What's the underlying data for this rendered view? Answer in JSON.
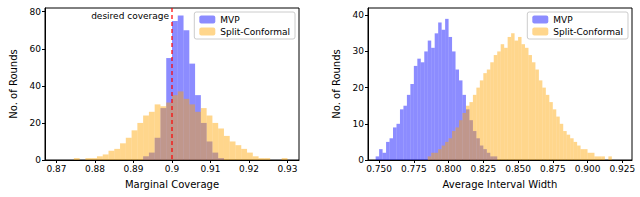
{
  "chart_data": [
    {
      "type": "histogram",
      "xlabel": "Marginal Coverage",
      "ylabel": "No. of Rounds",
      "bins": [
        0.87,
        0.8715,
        0.873,
        0.8745,
        0.876,
        0.8775,
        0.879,
        0.8805,
        0.882,
        0.8835,
        0.885,
        0.8865,
        0.888,
        0.8895,
        0.891,
        0.8925,
        0.894,
        0.8955,
        0.897,
        0.8985,
        0.9,
        0.9015,
        0.903,
        0.9045,
        0.906,
        0.9075,
        0.909,
        0.9105,
        0.912,
        0.9135,
        0.915,
        0.9165,
        0.918,
        0.9195,
        0.921,
        0.9225,
        0.924,
        0.9255,
        0.927,
        0.9285,
        0.93
      ],
      "series": [
        {
          "name": "MVP",
          "color": "#0000ff",
          "values": [
            0,
            0,
            0,
            0,
            0,
            0,
            0,
            0,
            0,
            0,
            0,
            0,
            0,
            0,
            0,
            2,
            4,
            12,
            28,
            55,
            75,
            78,
            70,
            52,
            35,
            20,
            10,
            4,
            1,
            0,
            0,
            0,
            0,
            0,
            0,
            0,
            0,
            0,
            0,
            0
          ]
        },
        {
          "name": "Split-Conformal",
          "color": "#ffa500",
          "values": [
            0,
            0,
            0,
            1,
            0,
            1,
            1,
            2,
            3,
            5,
            6,
            9,
            12,
            16,
            20,
            24,
            26,
            30,
            29,
            31,
            35,
            37,
            33,
            30,
            26,
            28,
            24,
            20,
            17,
            13,
            10,
            8,
            6,
            4,
            2,
            1,
            1,
            0,
            0,
            1
          ]
        }
      ],
      "vline": {
        "x": 0.9,
        "label": "desired coverage",
        "color": "red",
        "line_style": "dashed"
      },
      "xlim": [
        0.867,
        0.933
      ],
      "xticks": [
        0.87,
        0.88,
        0.89,
        0.9,
        0.91,
        0.92,
        0.93
      ],
      "ylim": [
        0,
        82
      ],
      "yticks": [
        0,
        20,
        40,
        60,
        80
      ],
      "legend": "upper right",
      "grid": false
    },
    {
      "type": "histogram",
      "xlabel": "Average Interval Width",
      "ylabel": "No. of Rounds",
      "bins": [
        0.745,
        0.7475,
        0.75,
        0.7525,
        0.755,
        0.7575,
        0.76,
        0.7625,
        0.765,
        0.7675,
        0.77,
        0.7725,
        0.775,
        0.7775,
        0.78,
        0.7825,
        0.785,
        0.7875,
        0.79,
        0.7925,
        0.795,
        0.7975,
        0.8,
        0.8025,
        0.805,
        0.8075,
        0.81,
        0.8125,
        0.815,
        0.8175,
        0.82,
        0.8225,
        0.825,
        0.8275,
        0.83,
        0.8325,
        0.835,
        0.8375,
        0.84,
        0.8425,
        0.845,
        0.8475,
        0.85,
        0.8525,
        0.855,
        0.8575,
        0.86,
        0.8625,
        0.865,
        0.8675,
        0.87,
        0.8725,
        0.875,
        0.8775,
        0.88,
        0.8825,
        0.885,
        0.8875,
        0.89,
        0.8925,
        0.895,
        0.8975,
        0.9,
        0.9025,
        0.905,
        0.9075,
        0.91,
        0.9125,
        0.915,
        0.9175,
        0.92,
        0.9225,
        0.925
      ],
      "series": [
        {
          "name": "MVP",
          "color": "#0000ff",
          "values": [
            0,
            1,
            3,
            2,
            5,
            6,
            9,
            10,
            14,
            15,
            18,
            21,
            26,
            28,
            27,
            30,
            33,
            31,
            35,
            38,
            36,
            39,
            34,
            30,
            25,
            22,
            18,
            14,
            11,
            8,
            6,
            4,
            3,
            2,
            1,
            1,
            0,
            0,
            0,
            0,
            0,
            0,
            0,
            0,
            0,
            0,
            0,
            0,
            0,
            0,
            0,
            0,
            0,
            0,
            0,
            0,
            0,
            0,
            0,
            0,
            0,
            0,
            0,
            0,
            0,
            0,
            0,
            0,
            0,
            0,
            0,
            0
          ]
        },
        {
          "name": "Split-Conformal",
          "color": "#ffa500",
          "values": [
            0,
            0,
            0,
            0,
            0,
            0,
            0,
            0,
            0,
            0,
            0,
            0,
            0,
            0,
            0,
            0,
            1,
            2,
            2,
            3,
            4,
            5,
            6,
            8,
            9,
            11,
            13,
            15,
            16,
            18,
            20,
            22,
            24,
            25,
            27,
            29,
            30,
            32,
            31,
            34,
            35,
            33,
            34,
            32,
            31,
            29,
            27,
            25,
            22,
            20,
            18,
            16,
            14,
            12,
            10,
            8,
            7,
            6,
            5,
            4,
            3,
            3,
            2,
            2,
            1,
            1,
            1,
            0,
            1,
            0,
            0,
            0
          ]
        }
      ],
      "xlim": [
        0.742,
        0.932
      ],
      "xticks": [
        {
          "value": 0.75,
          "label": "0.750"
        },
        0.775,
        {
          "value": 0.8,
          "label": "0.800"
        },
        0.825,
        {
          "value": 0.85,
          "label": "0.850"
        },
        0.875,
        {
          "value": 0.9,
          "label": "0.900"
        },
        0.925
      ],
      "ylim": [
        0,
        42
      ],
      "yticks": [
        0,
        10,
        20,
        30,
        40
      ],
      "legend": "upper right",
      "grid": false
    }
  ]
}
